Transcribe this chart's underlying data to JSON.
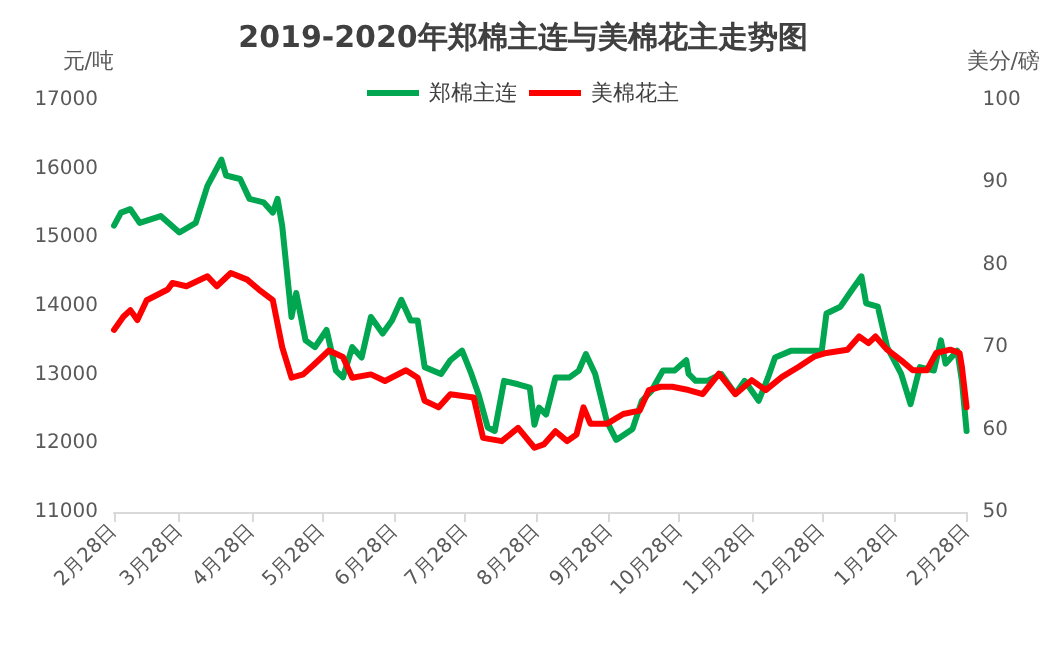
{
  "chart_data": {
    "type": "line",
    "title": "2019-2020年郑棉主连与美棉花主走势图",
    "ylabel": "元/吨",
    "y2label": "美分/磅",
    "xlim": [
      "2019-02-28",
      "2020-02-28"
    ],
    "xticks": [
      {
        "value": "2019-02-28",
        "label": "2月28日"
      },
      {
        "value": "2019-03-28",
        "label": "3月28日"
      },
      {
        "value": "2019-04-28",
        "label": "4月28日"
      },
      {
        "value": "2019-05-28",
        "label": "5月28日"
      },
      {
        "value": "2019-06-28",
        "label": "6月28日"
      },
      {
        "value": "2019-07-28",
        "label": "7月28日"
      },
      {
        "value": "2019-08-28",
        "label": "8月28日"
      },
      {
        "value": "2019-09-28",
        "label": "9月28日"
      },
      {
        "value": "2019-10-28",
        "label": "10月28日"
      },
      {
        "value": "2019-11-28",
        "label": "11月28日"
      },
      {
        "value": "2019-12-28",
        "label": "12月28日"
      },
      {
        "value": "2020-01-28",
        "label": "1月28日"
      },
      {
        "value": "2020-02-28",
        "label": "2月28日"
      }
    ],
    "ylim": [
      11000,
      17000
    ],
    "yticks": [
      11000,
      12000,
      13000,
      14000,
      15000,
      16000,
      17000
    ],
    "y2lim": [
      50,
      100
    ],
    "y2ticks": [
      50,
      60,
      70,
      80,
      90,
      100
    ],
    "legend": "top",
    "grid": false,
    "marker": "none",
    "line_style": "solid",
    "series": [
      {
        "name": "郑棉主连",
        "color": "#00a650",
        "x": [
          "2019-02-28",
          "2019-03-03",
          "2019-03-07",
          "2019-03-11",
          "2019-03-20",
          "2019-03-28",
          "2019-04-04",
          "2019-04-09",
          "2019-04-15",
          "2019-04-17",
          "2019-04-23",
          "2019-04-27",
          "2019-05-03",
          "2019-05-07",
          "2019-05-09",
          "2019-05-11",
          "2019-05-15",
          "2019-05-17",
          "2019-05-21",
          "2019-05-25",
          "2019-05-30",
          "2019-06-03",
          "2019-06-06",
          "2019-06-10",
          "2019-06-14",
          "2019-06-18",
          "2019-06-23",
          "2019-06-27",
          "2019-07-01",
          "2019-07-05",
          "2019-07-08",
          "2019-07-11",
          "2019-07-18",
          "2019-07-22",
          "2019-07-27",
          "2019-07-31",
          "2019-08-03",
          "2019-08-07",
          "2019-08-10",
          "2019-08-14",
          "2019-08-20",
          "2019-08-25",
          "2019-08-27",
          "2019-08-29",
          "2019-09-01",
          "2019-09-05",
          "2019-09-11",
          "2019-09-15",
          "2019-09-18",
          "2019-09-22",
          "2019-09-27",
          "2019-10-01",
          "2019-10-08",
          "2019-10-12",
          "2019-10-16",
          "2019-10-21",
          "2019-10-26",
          "2019-10-31",
          "2019-11-01",
          "2019-11-04",
          "2019-11-09",
          "2019-11-15",
          "2019-11-21",
          "2019-11-25",
          "2019-12-01",
          "2019-12-05",
          "2019-12-08",
          "2019-12-15",
          "2019-12-22",
          "2019-12-28",
          "2019-12-30",
          "2020-01-05",
          "2020-01-09",
          "2020-01-14",
          "2020-01-16",
          "2020-01-21",
          "2020-01-25",
          "2020-01-31",
          "2020-02-04",
          "2020-02-08",
          "2020-02-14",
          "2020-02-17",
          "2020-02-19",
          "2020-02-24",
          "2020-02-26",
          "2020-02-28"
        ],
        "values": [
          15170,
          15360,
          15410,
          15210,
          15310,
          15070,
          15210,
          15750,
          16130,
          15900,
          15850,
          15560,
          15510,
          15360,
          15560,
          15170,
          13840,
          14190,
          13500,
          13400,
          13650,
          13060,
          12960,
          13400,
          13250,
          13840,
          13600,
          13790,
          14090,
          13790,
          13790,
          13110,
          13010,
          13210,
          13350,
          13010,
          12720,
          12230,
          12180,
          12910,
          12860,
          12810,
          12270,
          12520,
          12420,
          12960,
          12960,
          13060,
          13300,
          13010,
          12320,
          12050,
          12210,
          12620,
          12760,
          13060,
          13060,
          13210,
          13010,
          12910,
          12910,
          13010,
          12720,
          12910,
          12620,
          12960,
          13250,
          13350,
          13350,
          13350,
          13890,
          13990,
          14190,
          14430,
          14040,
          13990,
          13400,
          13010,
          12570,
          13110,
          13060,
          13500,
          13160,
          13350,
          12910,
          12180
        ]
      },
      {
        "name": "美棉花主",
        "color": "#ff0000",
        "axis": "y2",
        "x": [
          "2019-02-28",
          "2019-03-04",
          "2019-03-07",
          "2019-03-10",
          "2019-03-14",
          "2019-03-23",
          "2019-03-25",
          "2019-03-31",
          "2019-04-09",
          "2019-04-13",
          "2019-04-19",
          "2019-04-26",
          "2019-05-01",
          "2019-05-07",
          "2019-05-11",
          "2019-05-15",
          "2019-05-20",
          "2019-05-25",
          "2019-05-31",
          "2019-06-06",
          "2019-06-10",
          "2019-06-18",
          "2019-06-24",
          "2019-07-03",
          "2019-07-08",
          "2019-07-11",
          "2019-07-17",
          "2019-07-22",
          "2019-08-01",
          "2019-08-05",
          "2019-08-13",
          "2019-08-20",
          "2019-08-27",
          "2019-08-31",
          "2019-09-05",
          "2019-09-10",
          "2019-09-14",
          "2019-09-17",
          "2019-09-20",
          "2019-09-27",
          "2019-10-04",
          "2019-10-11",
          "2019-10-15",
          "2019-10-20",
          "2019-10-25",
          "2019-11-01",
          "2019-11-07",
          "2019-11-14",
          "2019-11-21",
          "2019-11-28",
          "2019-12-04",
          "2019-12-11",
          "2019-12-18",
          "2019-12-25",
          "2019-12-30",
          "2020-01-08",
          "2020-01-13",
          "2020-01-17",
          "2020-01-20",
          "2020-01-25",
          "2020-01-31",
          "2020-02-05",
          "2020-02-11",
          "2020-02-15",
          "2020-02-21",
          "2020-02-25",
          "2020-02-26",
          "2020-02-28"
        ],
        "values": [
          72.1,
          73.7,
          74.5,
          73.3,
          75.7,
          77.0,
          77.8,
          77.4,
          78.6,
          77.4,
          79.0,
          78.2,
          77.0,
          75.7,
          70.0,
          66.3,
          66.7,
          68.0,
          69.6,
          68.8,
          66.3,
          66.7,
          65.9,
          67.2,
          66.3,
          63.5,
          62.7,
          64.3,
          63.9,
          59.0,
          58.6,
          60.2,
          57.8,
          58.2,
          59.8,
          58.6,
          59.4,
          62.7,
          60.7,
          60.7,
          61.9,
          62.3,
          64.8,
          65.2,
          65.2,
          64.8,
          64.3,
          66.8,
          64.3,
          66.0,
          64.8,
          66.4,
          67.6,
          68.9,
          69.3,
          69.7,
          71.3,
          70.5,
          71.3,
          69.7,
          68.4,
          67.2,
          67.2,
          69.3,
          69.7,
          69.3,
          67.6,
          62.7
        ]
      }
    ]
  }
}
